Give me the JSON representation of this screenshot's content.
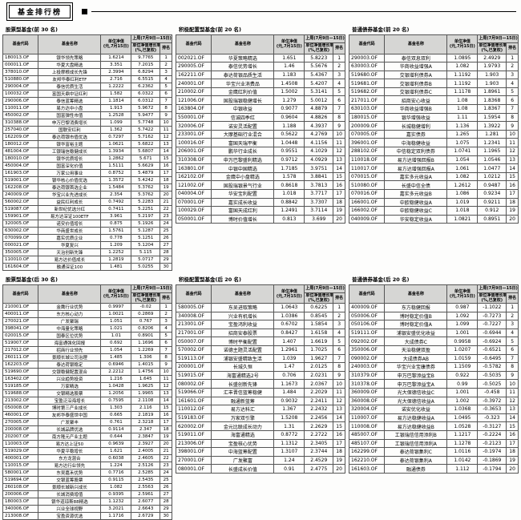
{
  "page": {
    "banner": "基金排行榜"
  },
  "columns": {
    "code": "基金代码",
    "name": "基金名称",
    "nav_line1": "单位净值",
    "nav_line2": "(元,7月15日)",
    "week": "上周(7月9日—15日)",
    "growth_line1": "单位净值增长率",
    "growth_line2": "(%,已复权)",
    "rank": "排名"
  },
  "tables": [
    {
      "title": "股票型基金(前 30 名)",
      "rows": [
        [
          "180013.OF",
          "银华领先策略",
          "1.6214",
          "9.7765",
          "1"
        ],
        [
          "000011.OF",
          "华夏大盘精选",
          "3.351",
          "7.2015",
          "2"
        ],
        [
          "378010.OF",
          "上投摩根成长先锋",
          "2.3994",
          "6.8294",
          "3"
        ],
        [
          "510880.OF",
          "友邦华泰红利ETF",
          "2.716",
          "6.5515",
          "4"
        ],
        [
          "290004.OF",
          "泰信优质生活",
          "1.2222",
          "6.2362",
          "5"
        ],
        [
          "100032.OF",
          "富国天鼎中证红利",
          "1.582",
          "6.0322",
          "6"
        ],
        [
          "290006.OF",
          "泰信蓝筹精选",
          "1.1814",
          "6.0312",
          "7"
        ],
        [
          "110011.OF",
          "易方达中小盘",
          "1.913",
          "5.9672",
          "8"
        ],
        [
          "450002.OF",
          "国富弹性市值",
          "1.2528",
          "5.9477",
          "9"
        ],
        [
          "310388.OF",
          "申万巴黎消费增长",
          "1.099",
          "5.7748",
          "10"
        ],
        [
          "257040.OF",
          "国联安红利",
          "1.362",
          "5.7422",
          "11"
        ],
        [
          "162209.OF",
          "泰达荷银市值优选",
          "0.7297",
          "5.7162",
          "12"
        ],
        [
          "180012.OF",
          "银华富裕主题",
          "1.0621",
          "5.6822",
          "13"
        ],
        [
          "481004.OF",
          "工银瑞信稳健成长",
          "1.3934",
          "5.6807",
          "14"
        ],
        [
          "180010.OF",
          "银华优质增长",
          "1.2862",
          "5.671",
          "15"
        ],
        [
          "450004.OF",
          "国富深化价值",
          "1.5111",
          "5.6629",
          "16"
        ],
        [
          "161903.OF",
          "万家公用事业",
          "0.8752",
          "5.4879",
          "17"
        ],
        [
          "519001.OF",
          "银华核心价值优选",
          "1.3572",
          "5.4242",
          "18"
        ],
        [
          "162208.OF",
          "泰达荷银首选企业",
          "1.5484",
          "5.3762",
          "19"
        ],
        [
          "240009.OF",
          "华宝兴业先进成长",
          "2.354",
          "5.3762",
          "20"
        ],
        [
          "560002.OF",
          "益民红利成长",
          "0.7492",
          "5.2283",
          "21"
        ],
        [
          "519087.OF",
          "新世纪优选分红",
          "0.7411",
          "5.2251",
          "22"
        ],
        [
          "159901.OF",
          "易方达深证100ETF",
          "3.961",
          "5.2197",
          "23"
        ],
        [
          "320005.OF",
          "诺安价值增长",
          "0.875",
          "5.1926",
          "24"
        ],
        [
          "630002.OF",
          "华商盛世成长",
          "1.5761",
          "5.1287",
          "25"
        ],
        [
          "070099.OF",
          "嘉实优质企业",
          "0.778",
          "5.1251",
          "26"
        ],
        [
          "000021.OF",
          "华夏复兴",
          "1.209",
          "5.1204",
          "27"
        ],
        [
          "350005.OF",
          "天治创新先锋",
          "1.2252",
          "5.115",
          "28"
        ],
        [
          "110010.OF",
          "易方达价值成长",
          "1.2819",
          "5.0717",
          "29"
        ],
        [
          "161604.OF",
          "融通深证100",
          "1.481",
          "5.0255",
          "30"
        ]
      ]
    },
    {
      "title": "积极配置型基金(前 20 名)",
      "rows": [
        [
          "002021.OF",
          "华夏策略精选",
          "1.651",
          "5.8223",
          "1"
        ],
        [
          "290005.OF",
          "泰信优势增长",
          "1.46",
          "5.5676",
          "2"
        ],
        [
          "162211.OF",
          "泰达荷银品质生活",
          "1.183",
          "5.4367",
          "3"
        ],
        [
          "240001.OF",
          "华宝兴业消费品",
          "1.4508",
          "5.4207",
          "4"
        ],
        [
          "210002.OF",
          "金鹰红利价值",
          "1.5002",
          "5.3141",
          "5"
        ],
        [
          "121006.OF",
          "国投瑞银稳健增长",
          "1.279",
          "5.0012",
          "6"
        ],
        [
          "163804.OF",
          "中银收益",
          "0.9077",
          "4.8879",
          "7"
        ],
        [
          "550001.OF",
          "信诚四季红",
          "0.9604",
          "4.8826",
          "8"
        ],
        [
          "320006.OF",
          "诺安灵活配置",
          "1.188",
          "4.3937",
          "9"
        ],
        [
          "233001.OF",
          "大摩基础行业混合",
          "0.5622",
          "4.2769",
          "10"
        ],
        [
          "100016.OF",
          "富国天瑞平衡",
          "1.0448",
          "4.1156",
          "11"
        ],
        [
          "206001.OF",
          "鹏华行业成长",
          "0.9551",
          "4.1029",
          "12"
        ],
        [
          "310308.OF",
          "申万巴黎盛利精选",
          "0.9712",
          "4.0929",
          "13"
        ],
        [
          "163801.OF",
          "中银中国精选",
          "1.7185",
          "3.9751",
          "14"
        ],
        [
          "162102.OF",
          "金鹰中小盘精选",
          "1.578",
          "3.8841",
          "15"
        ],
        [
          "121002.OF",
          "国投瑞银景气行业",
          "0.8618",
          "3.7813",
          "16"
        ],
        [
          "040004.OF",
          "华安宝利配置",
          "1.018",
          "3.7717",
          "17"
        ],
        [
          "070001.OF",
          "嘉实成长收益",
          "0.8842",
          "3.7307",
          "18"
        ],
        [
          "100029.OF",
          "富国天成红利",
          "1.2491",
          "3.7114",
          "19"
        ],
        [
          "050001.OF",
          "博时价值增长",
          "0.813",
          "3.699",
          "20"
        ]
      ]
    },
    {
      "title": "普通债券基金(前 20 名)",
      "rows": [
        [
          "290003.OF",
          "泰信双息双利",
          "1.0895",
          "2.4929",
          "1"
        ],
        [
          "630003.OF",
          "华商收益增强A",
          "1.082",
          "1.9793",
          "2"
        ],
        [
          "519680.OF",
          "交银增利债券A",
          "1.1192",
          "1.903",
          "3"
        ],
        [
          "519681.OF",
          "交银增利债券B",
          "1.1192",
          "1.903",
          "4"
        ],
        [
          "519682.OF",
          "交银增利债券C",
          "1.1178",
          "1.8961",
          "5"
        ],
        [
          "217011.OF",
          "招商安心收益",
          "1.08",
          "1.8368",
          "6"
        ],
        [
          "630103.OF",
          "华商收益增强B",
          "1.08",
          "1.8367",
          "7"
        ],
        [
          "180015.OF",
          "银华增强收益",
          "1.11",
          "1.5954",
          "8"
        ],
        [
          "200009.OF",
          "长城稳健增利",
          "1.136",
          "1.3922",
          "9"
        ],
        [
          "070005.OF",
          "嘉实债券",
          "1.265",
          "1.281",
          "10"
        ],
        [
          "396001.OF",
          "中海稳健收益",
          "1.075",
          "1.2341",
          "11"
        ],
        [
          "288102.OF",
          "中信稳定双利债券",
          "1.0741",
          "1.1965",
          "12"
        ],
        [
          "110018.OF",
          "易方达增强回报B",
          "1.054",
          "1.0546",
          "13"
        ],
        [
          "110017.OF",
          "易方达增强回报A",
          "1.061",
          "1.0477",
          "14"
        ],
        [
          "070015.OF",
          "嘉实多元收益A",
          "1.082",
          "1.0212",
          "15"
        ],
        [
          "510080.OF",
          "长盛中信全债",
          "1.2612",
          "0.9487",
          "16"
        ],
        [
          "070016.OF",
          "嘉实多元收益B",
          "1.086",
          "0.9234",
          "17"
        ],
        [
          "166001.OF",
          "中欧稳健收益A",
          "1.019",
          "0.9211",
          "18"
        ],
        [
          "166002.OF",
          "中欧稳健收益C",
          "1.018",
          "0.912",
          "19"
        ],
        [
          "040009.OF",
          "华安稳定收益A",
          "1.0821",
          "0.8951",
          "20"
        ]
      ]
    },
    {
      "title": "股票型基金(后 30 名)",
      "rows": [
        [
          "210001.OF",
          "金鹰行业优势",
          "0.9997",
          "-0.02",
          "1"
        ],
        [
          "400011.OF",
          "东方核心动力",
          "1.0021",
          "0.2869",
          "2"
        ],
        [
          "270021.OF",
          "广发聚瑞",
          "1.051",
          "0.767",
          "3"
        ],
        [
          "398041.OF",
          "中海量化策略",
          "1.021",
          "0.8206",
          "4"
        ],
        [
          "020015.OF",
          "国泰区位优势",
          "1.01",
          "0.8901",
          "5"
        ],
        [
          "519007.OF",
          "海富通强化回报",
          "0.692",
          "1.1696",
          "6"
        ],
        [
          "217012.OF",
          "招商行业领先",
          "1.054",
          "1.2269",
          "7"
        ],
        [
          "260111.OF",
          "景顺长城公司治理",
          "1.485",
          "1.306",
          "8"
        ],
        [
          "162203.OF",
          "泰达荷银稳定",
          "0.6946",
          "1.4015",
          "9"
        ],
        [
          "519690.OF",
          "交银稳健配置混合",
          "2.2212",
          "1.4756",
          "10"
        ],
        [
          "163402.OF",
          "兴业趋势投资",
          "1.216",
          "1.645",
          "11"
        ],
        [
          "519185.OF",
          "万家精选",
          "1.0428",
          "1.9625",
          "12"
        ],
        [
          "519688.OF",
          "交银精选股票",
          "1.2056",
          "1.9965",
          "13"
        ],
        [
          "213002.OF",
          "宝盈泛沿海增长",
          "0.7595",
          "2.1108",
          "14"
        ],
        [
          "050008.OF",
          "博时第三产业成长",
          "1.303",
          "2.116",
          "15"
        ],
        [
          "460001.OF",
          "友邦华泰盛世中国",
          "0.665",
          "2.1819",
          "16"
        ],
        [
          "270005.OF",
          "广发聚丰",
          "0.761",
          "2.3218",
          "17"
        ],
        [
          "200008.OF",
          "长城品牌优选",
          "0.9114",
          "2.347",
          "18"
        ],
        [
          "202007.OF",
          "南方隆元产业主题",
          "0.644",
          "2.3847",
          "19"
        ],
        [
          "110003.OF",
          "易方达上证50",
          "0.9639",
          "2.3927",
          "20"
        ],
        [
          "519029.OF",
          "华夏平稳增长",
          "1.621",
          "2.4005",
          "21"
        ],
        [
          "400001.OF",
          "东方龙混合",
          "0.6038",
          "2.4605",
          "22"
        ],
        [
          "110015.OF",
          "易方达行业领先",
          "1.224",
          "2.5126",
          "23"
        ],
        [
          "580001.OF",
          "东吴嘉禾优势",
          "0.7716",
          "2.5285",
          "24"
        ],
        [
          "519694.OF",
          "交银蓝筹股票",
          "0.9115",
          "2.5435",
          "25"
        ],
        [
          "260108.OF",
          "景顺长城新兴成长",
          "1.082",
          "2.5563",
          "26"
        ],
        [
          "200006.OF",
          "长城消费增值",
          "0.9395",
          "2.5961",
          "27"
        ],
        [
          "180003.OF",
          "银华道琼斯88精选",
          "1.1232",
          "2.6077",
          "28"
        ],
        [
          "340006.OF",
          "兴业全球视野",
          "3.2021",
          "2.6643",
          "29"
        ],
        [
          "213008.OF",
          "宝盈资源优选",
          "1.1716",
          "2.6729",
          "30"
        ]
      ]
    },
    {
      "title": "积极配置型基金(后 20 名)",
      "rows": [
        [
          "580005.OF",
          "东吴进取策略",
          "1.0643",
          "0.6225",
          "1"
        ],
        [
          "340008.OF",
          "兴业有机增长",
          "1.0386",
          "0.8545",
          "2"
        ],
        [
          "213001.OF",
          "宝盈鸿利收益",
          "0.6702",
          "1.5854",
          "3"
        ],
        [
          "217001.OF",
          "招商安泰股票",
          "0.8427",
          "1.6158",
          "4"
        ],
        [
          "050007.OF",
          "博时平衡配置",
          "1.407",
          "1.6619",
          "5"
        ],
        [
          "570002.OF",
          "诺德主题灵活配置",
          "1.2961",
          "1.7025",
          "6"
        ],
        [
          "519113.OF",
          "浦银安盛精致生活",
          "1.039",
          "1.9627",
          "7"
        ],
        [
          "200001.OF",
          "长城久恒",
          "1.47",
          "2.0125",
          "8"
        ],
        [
          "519015.OF",
          "海富通精选2号",
          "0.706",
          "2.0231",
          "9"
        ],
        [
          "080002.OF",
          "长盛创新先锋",
          "1.1673",
          "2.0367",
          "10"
        ],
        [
          "519066.OF",
          "汇丰晋信蓝筹稳健",
          "1.484",
          "2.2029",
          "11"
        ],
        [
          "161601.OF",
          "融通新蓝筹",
          "0.9032",
          "2.2411",
          "12"
        ],
        [
          "110012.OF",
          "易方达科汇",
          "1.367",
          "2.2432",
          "13"
        ],
        [
          "519183.OF",
          "万家双引擎",
          "1.5208",
          "2.2456",
          "14"
        ],
        [
          "620002.OF",
          "金元比联成长动力",
          "1.31",
          "2.2629",
          "15"
        ],
        [
          "519011.OF",
          "海富通精选",
          "0.8772",
          "2.2722",
          "16"
        ],
        [
          "213006.OF",
          "宝盈核心优势",
          "1.1312",
          "2.3405",
          "17"
        ],
        [
          "398001.OF",
          "中海蓝筹配置",
          "1.3107",
          "2.3744",
          "18"
        ],
        [
          "270001.OF",
          "广发聚富",
          "1.24",
          "2.4529",
          "19"
        ],
        [
          "080001.OF",
          "长盛成长价值",
          "0.91",
          "2.4775",
          "20"
        ]
      ]
    },
    {
      "title": "普通债券基金(后 20 名)",
      "rows": [
        [
          "400009.OF",
          "东方稳健回报",
          "0.987",
          "-1.1022",
          "1"
        ],
        [
          "050006.OF",
          "博时稳定价值B",
          "1.092",
          "-0.7273",
          "2"
        ],
        [
          "050106.OF",
          "博时稳定价值A",
          "1.099",
          "-0.7227",
          "3"
        ],
        [
          "519111.OF",
          "浦银安盛优化收益",
          "1.001",
          "-0.6944",
          "4"
        ],
        [
          "092002.OF",
          "大成债券C",
          "0.9958",
          "-0.6924",
          "5"
        ],
        [
          "350006.OF",
          "天治稳健双盈",
          "1.0207",
          "-0.6521",
          "6"
        ],
        [
          "090002.OF",
          "大成债券AB",
          "1.0159",
          "-0.6495",
          "7"
        ],
        [
          "240003.OF",
          "华宝兴业宝康债券",
          "1.1509",
          "-0.5782",
          "8"
        ],
        [
          "310379.OF",
          "申万巴黎添益宝B",
          "0.922",
          "-0.5035",
          "9"
        ],
        [
          "310378.OF",
          "申万巴黎添益宝A",
          "0.99",
          "-0.5025",
          "10"
        ],
        [
          "360009.OF",
          "光大保德信收益C",
          "1.001",
          "-0.458",
          "11"
        ],
        [
          "360008.OF",
          "光大保德信收益A",
          "1.002",
          "-0.3972",
          "12"
        ],
        [
          "320004.OF",
          "诺安优化收益",
          "1.0368",
          "-0.3653",
          "13"
        ],
        [
          "110007.OF",
          "易方达稳健收益A",
          "1.0495",
          "-0.323",
          "14"
        ],
        [
          "110008.OF",
          "易方达稳健收益B",
          "1.0528",
          "-0.3127",
          "15"
        ],
        [
          "485007.OF",
          "工银瑞信信用添利B",
          "1.1217",
          "-0.2224",
          "16"
        ],
        [
          "485107.OF",
          "工银瑞信信用添利A",
          "1.1278",
          "-0.2123",
          "17"
        ],
        [
          "162299.OF",
          "泰达荷银集利C",
          "1.0116",
          "-0.1974",
          "18"
        ],
        [
          "162210.OF",
          "泰达荷银集利A",
          "1.0142",
          "-0.1869",
          "19"
        ],
        [
          "161603.OF",
          "融通债券",
          "1.112",
          "-0.1794",
          "20"
        ]
      ]
    }
  ]
}
